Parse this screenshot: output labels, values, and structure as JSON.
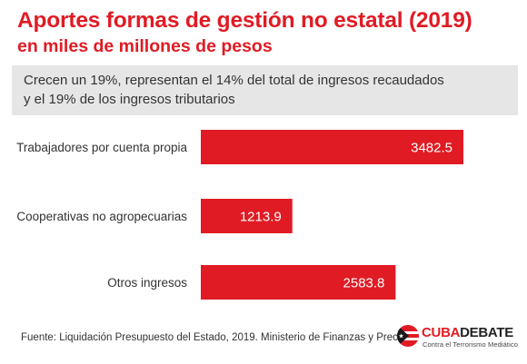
{
  "header": {
    "title": "Aportes formas de gestión no estatal (2019)",
    "subtitle": "en miles de millones de pesos"
  },
  "note": {
    "line1": "Crecen un 19%, representan el 14% del total de ingresos recaudados",
    "line2": "y el 19% de los ingresos tributarios"
  },
  "chart_data": {
    "type": "bar",
    "orientation": "horizontal",
    "categories": [
      "Trabajadores por cuenta propia",
      "Cooperativas no agropecuarias",
      "Otros ingresos"
    ],
    "values": [
      3482.5,
      1213.9,
      2583.8
    ],
    "value_labels": [
      "3482.5",
      "1213.9",
      "2583.8"
    ],
    "bar_color": "#e01b24",
    "grid": false,
    "legend": "none"
  },
  "footer": {
    "source": "Fuente: Liquidación Presupuesto del Estado, 2019. Ministerio de Finanzas y Precios"
  },
  "logo": {
    "word_cuba": "CUBA",
    "word_debate": "DEBATE",
    "tagline": "Contra el Terrorismo Mediático",
    "icon": "cuban-flag-emblem-icon"
  }
}
